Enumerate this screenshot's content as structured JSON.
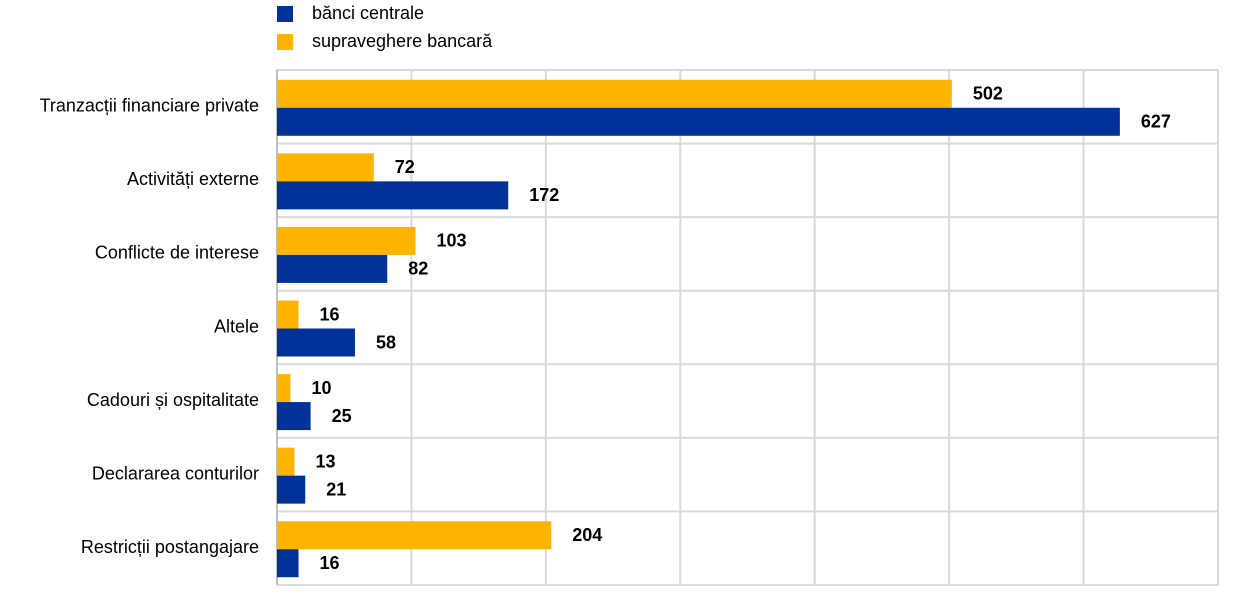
{
  "chart_data": {
    "type": "hbar",
    "categories": [
      "Tranzacții financiare private",
      "Activități externe",
      "Conflicte de interese",
      "Altele",
      "Cadouri și ospitalitate",
      "Declararea conturilor",
      "Restricții postangajare"
    ],
    "series": [
      {
        "name": "bănci centrale",
        "color": "#003299",
        "values": [
          627,
          172,
          82,
          58,
          25,
          21,
          16
        ]
      },
      {
        "name": "supraveghere bancară",
        "color": "#ffb400",
        "values": [
          502,
          72,
          103,
          16,
          10,
          13,
          204
        ]
      }
    ],
    "xlim": [
      0,
      700
    ],
    "xticks": [
      0,
      100,
      200,
      300,
      400,
      500,
      600,
      700
    ],
    "grid": true
  }
}
